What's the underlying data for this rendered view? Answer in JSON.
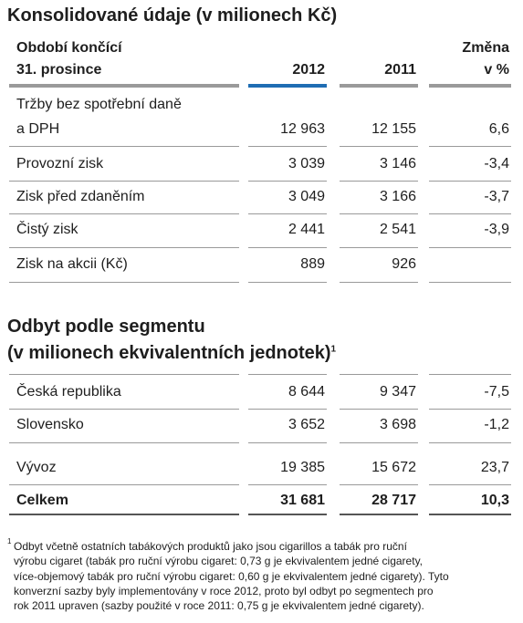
{
  "section1": {
    "title": "Konsolidované údaje (v milionech Kč)",
    "header": {
      "label_lines": [
        "Období končící",
        "31. prosince"
      ],
      "col_2012": "2012",
      "col_2011": "2011",
      "change_lines": [
        "Změna",
        "v %"
      ]
    },
    "rows": [
      {
        "label_lines": [
          "Tržby bez spotřební daně",
          "a DPH"
        ],
        "v2012": "12 963",
        "v2011": "12 155",
        "change": "6,6"
      },
      {
        "label_lines": [
          "Provozní zisk"
        ],
        "v2012": "3 039",
        "v2011": "3 146",
        "change": "-3,4"
      },
      {
        "label_lines": [
          "Zisk před zdaněním"
        ],
        "v2012": "3 049",
        "v2011": "3 166",
        "change": "-3,7"
      },
      {
        "label_lines": [
          "Čistý zisk"
        ],
        "v2012": "2 441",
        "v2011": "2 541",
        "change": "-3,9"
      },
      {
        "label_lines": [
          "Zisk na akcii (Kč)"
        ],
        "v2012": "889",
        "v2011": "926"
      }
    ]
  },
  "section2": {
    "title_lines": [
      "Odbyt podle segmentu",
      "(v milionech ekvivalentních jednotek)"
    ],
    "footnote_mark": "1",
    "rows": [
      {
        "label_lines": [
          "Česká republika"
        ],
        "v2012": "8 644",
        "v2011": "9 347",
        "change": "-7,5"
      },
      {
        "label_lines": [
          "Slovensko"
        ],
        "v2012": "3 652",
        "v2011": "3 698",
        "change": "-1,2"
      },
      {
        "label_lines": [
          "Vývoz"
        ],
        "v2012": "19 385",
        "v2011": "15 672",
        "change": "23,7"
      }
    ],
    "total": {
      "label": "Celkem",
      "v2012": "31 681",
      "v2011": "28 717",
      "change": "10,3"
    }
  },
  "footnote": {
    "mark": "1",
    "lines": [
      "Odbyt včetně ostatních tabákových produktů jako jsou cigarillos a tabák pro ruční",
      "výrobu cigaret (tabák pro ruční výrobu cigaret: 0,73 g je ekvivalentem jedné cigarety,",
      "více-objemový tabák pro ruční výrobu cigaret: 0,60 g je ekvivalentem jedné cigarety). Tyto",
      "konverzní sazby byly implementovány v roce 2012, proto byl odbyt po segmentech pro",
      "rok 2011 upraven (sazby použité v roce 2011: 0,75 g je ekvivalentem jedné cigarety)."
    ]
  }
}
